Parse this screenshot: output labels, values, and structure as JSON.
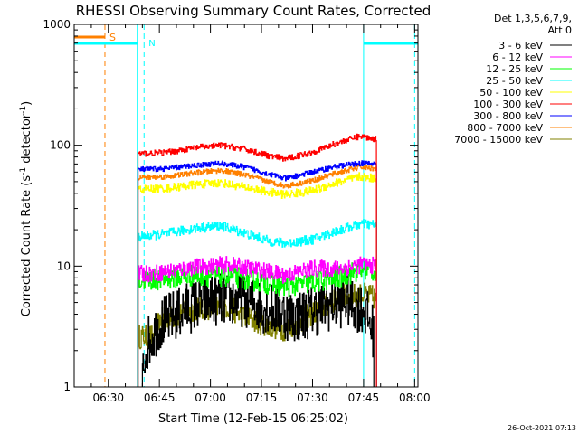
{
  "chart_data": {
    "type": "line",
    "title": "RHESSI Observing Summary Count Rates, Corrected",
    "xlabel": "Start Time (12-Feb-15 06:25:02)",
    "ylabel_main": "Corrected Count Rate (s",
    "ylabel_sup1": "-1",
    "ylabel_mid": " detector",
    "ylabel_sup2": "-1",
    "ylabel_end": ")",
    "y_scale": "log",
    "ylim": [
      1,
      1000
    ],
    "y_ticks": [
      {
        "value": 1,
        "label": "1"
      },
      {
        "value": 10,
        "label": "10"
      },
      {
        "value": 100,
        "label": "100"
      },
      {
        "value": 1000,
        "label": "1000"
      }
    ],
    "xlim_minutes": [
      -5.03,
      95.97
    ],
    "x_ticks": [
      {
        "value": 5,
        "label": "06:30"
      },
      {
        "value": 20,
        "label": "06:45"
      },
      {
        "value": 35,
        "label": "07:00"
      },
      {
        "value": 50,
        "label": "07:15"
      },
      {
        "value": 65,
        "label": "07:30"
      },
      {
        "value": 80,
        "label": "07:45"
      },
      {
        "value": 95,
        "label": "08:00"
      }
    ],
    "legend_header": [
      "Det 1,3,5,6,7,9,",
      "Att 0"
    ],
    "legend_placement": "right",
    "annotations": {
      "saa_label": "S",
      "night_label": "N",
      "saa_color": "#ff8000",
      "night_color": "#00ffff",
      "saa_line_minute": 4.0,
      "night_lines_minutes": [
        13.5,
        15.5,
        80.0,
        95.0
      ],
      "saa_bar_minutes": [
        -5.03,
        4.0
      ],
      "night_bar_minutes_1": [
        -5.03,
        13.5
      ],
      "night_bar_minutes_2": [
        80.0,
        95.97
      ],
      "data_start_minute": 13.7,
      "data_end_minute": 83.9
    },
    "series": [
      {
        "name": "3 - 6 keV",
        "color": "#000000",
        "noise": 0.22,
        "points": [
          [
            15,
            1.2
          ],
          [
            16,
            2.2
          ],
          [
            20,
            3.3
          ],
          [
            28,
            4.5
          ],
          [
            35,
            5.3
          ],
          [
            45,
            5.2
          ],
          [
            55,
            4.2
          ],
          [
            60,
            3.8
          ],
          [
            70,
            4.8
          ],
          [
            75,
            5.2
          ],
          [
            80,
            4.4
          ],
          [
            83,
            2.8
          ]
        ]
      },
      {
        "name": "6 - 12 keV",
        "color": "#ff00ff",
        "noise": 0.07,
        "points": [
          [
            13.7,
            8.6
          ],
          [
            20,
            8.8
          ],
          [
            30,
            9.8
          ],
          [
            40,
            10.3
          ],
          [
            50,
            9.2
          ],
          [
            57,
            8.4
          ],
          [
            65,
            9.6
          ],
          [
            72,
            9.5
          ],
          [
            80,
            10.3
          ],
          [
            83.9,
            10.0
          ]
        ]
      },
      {
        "name": "12 - 25 keV",
        "color": "#00ff00",
        "noise": 0.09,
        "points": [
          [
            13.7,
            7.6
          ],
          [
            20,
            7.8
          ],
          [
            30,
            8.4
          ],
          [
            40,
            8.3
          ],
          [
            50,
            7.4
          ],
          [
            57,
            6.8
          ],
          [
            65,
            7.3
          ],
          [
            72,
            8.0
          ],
          [
            80,
            9.5
          ],
          [
            83.9,
            9.0
          ]
        ]
      },
      {
        "name": "25 - 50 keV",
        "color": "#00ffff",
        "noise": 0.04,
        "points": [
          [
            13.7,
            17.5
          ],
          [
            22,
            18.5
          ],
          [
            30,
            20.5
          ],
          [
            38,
            21.5
          ],
          [
            45,
            18.8
          ],
          [
            52,
            16.2
          ],
          [
            57,
            15.4
          ],
          [
            65,
            16.6
          ],
          [
            72,
            19.5
          ],
          [
            79,
            22.3
          ],
          [
            83.9,
            22.0
          ]
        ]
      },
      {
        "name": "50 - 100 keV",
        "color": "#ffff00",
        "noise": 0.035,
        "points": [
          [
            13.7,
            43
          ],
          [
            22,
            44
          ],
          [
            30,
            47
          ],
          [
            38,
            49
          ],
          [
            45,
            45
          ],
          [
            52,
            41
          ],
          [
            57,
            39
          ],
          [
            65,
            42
          ],
          [
            72,
            49
          ],
          [
            79,
            55
          ],
          [
            83.9,
            53
          ]
        ]
      },
      {
        "name": "100 - 300 keV",
        "color": "#ff0000",
        "noise": 0.025,
        "points": [
          [
            13.7,
            85
          ],
          [
            22,
            87
          ],
          [
            30,
            95
          ],
          [
            38,
            100
          ],
          [
            45,
            93
          ],
          [
            52,
            82
          ],
          [
            57,
            77
          ],
          [
            65,
            88
          ],
          [
            72,
            104
          ],
          [
            79,
            119
          ],
          [
            83.9,
            112
          ]
        ]
      },
      {
        "name": "300 - 800 keV",
        "color": "#0000ff",
        "noise": 0.022,
        "points": [
          [
            13.7,
            63
          ],
          [
            22,
            64
          ],
          [
            30,
            68
          ],
          [
            38,
            71
          ],
          [
            45,
            66
          ],
          [
            52,
            58
          ],
          [
            57,
            53
          ],
          [
            65,
            60
          ],
          [
            72,
            67
          ],
          [
            79,
            71
          ],
          [
            83.9,
            70
          ]
        ]
      },
      {
        "name": "800 - 7000 keV",
        "color": "#ff8000",
        "noise": 0.022,
        "points": [
          [
            13.7,
            54
          ],
          [
            22,
            55
          ],
          [
            30,
            59
          ],
          [
            38,
            62
          ],
          [
            45,
            57
          ],
          [
            52,
            50
          ],
          [
            57,
            46
          ],
          [
            65,
            51
          ],
          [
            72,
            59
          ],
          [
            79,
            66
          ],
          [
            83.9,
            64
          ]
        ]
      },
      {
        "name": "7000 - 15000 keV",
        "color": "#808000",
        "noise": 0.1,
        "points": [
          [
            13.7,
            2.6
          ],
          [
            18,
            2.6
          ],
          [
            20,
            3.6
          ],
          [
            24,
            3.8
          ],
          [
            30,
            4.4
          ],
          [
            40,
            4.6
          ],
          [
            45,
            3.8
          ],
          [
            52,
            3.2
          ],
          [
            57,
            3.0
          ],
          [
            62,
            3.6
          ],
          [
            68,
            4.6
          ],
          [
            74,
            5.6
          ],
          [
            80,
            5.8
          ],
          [
            83.9,
            5.4
          ]
        ]
      }
    ]
  },
  "footer": {
    "timestamp": "26-Oct-2021 07:13"
  }
}
